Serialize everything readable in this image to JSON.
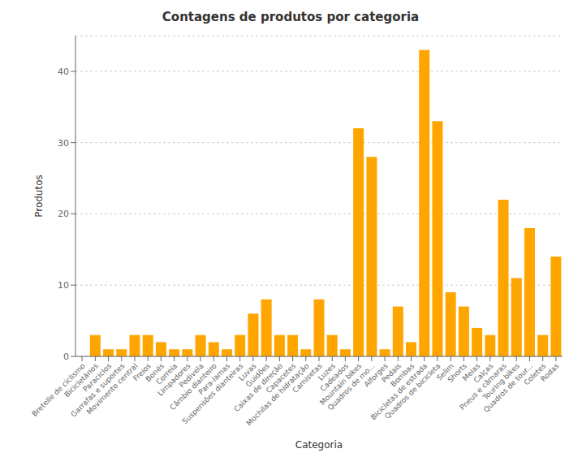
{
  "chart_data": {
    "type": "bar",
    "title": "Contagens de produtos por categoria",
    "xlabel": "Categoria",
    "ylabel": "Produtos",
    "categories": [
      "Bretelle de ciclismo",
      "Bicicletários",
      "Paraciclos",
      "Garrafas e suportes",
      "Movimento central",
      "Freios",
      "Bonés",
      "Correia",
      "Limpadores",
      "Pedivela",
      "Câmbio dianteiro",
      "Para-lamas",
      "Suspensões dianteiras",
      "Luvas",
      "Guidões",
      "Caixas de direção",
      "Capacetes",
      "Mochilas de hidratação",
      "Camisetas",
      "Luzes",
      "Cadeados",
      "Mountain bikes",
      "Quadros de mo...",
      "Alforges",
      "Pedais",
      "Bombas",
      "Bicicletas de estrada",
      "Quadros de bicicleta",
      "Selim",
      "Shorts",
      "Meias",
      "Calças",
      "Pneus e câmaras",
      "Touring bikes",
      "Quadros de tour...",
      "Coletes",
      "Rodas"
    ],
    "values": [
      0,
      3,
      1,
      1,
      3,
      3,
      2,
      1,
      1,
      3,
      2,
      1,
      3,
      6,
      8,
      3,
      3,
      1,
      8,
      3,
      1,
      32,
      28,
      1,
      7,
      2,
      43,
      33,
      9,
      7,
      4,
      3,
      22,
      11,
      18,
      3,
      14
    ],
    "color": "#FFA500",
    "ylim": [
      0,
      45
    ],
    "yticks": [
      0,
      10,
      20,
      30,
      40
    ],
    "grid": true
  }
}
